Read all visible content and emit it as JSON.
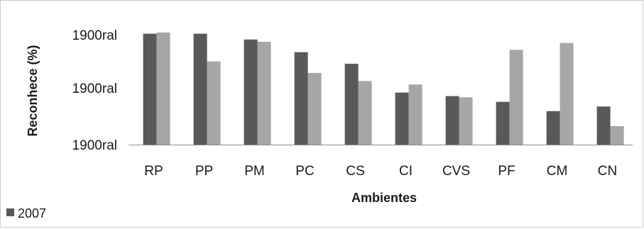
{
  "chart_data": {
    "type": "bar",
    "title": "",
    "xlabel": "Ambientes",
    "ylabel": "Reconhece (%)",
    "y_tick_labels": [
      "1900ral",
      "1900ral",
      "1900ral"
    ],
    "ylim": [
      0,
      100
    ],
    "grid": false,
    "legend_position": "bottom-left",
    "categories": [
      "RP",
      "PP",
      "PM",
      "PC",
      "CS",
      "CI",
      "CVS",
      "PF",
      "CM",
      "CN"
    ],
    "series": [
      {
        "name": "2007",
        "color": "#595959",
        "values": [
          96,
          96,
          91,
          80,
          70,
          45,
          42,
          37,
          29,
          33
        ]
      },
      {
        "color": "#a6a6a6",
        "values": [
          97,
          72,
          89,
          62,
          55,
          52,
          41,
          82,
          88,
          16
        ]
      }
    ]
  }
}
